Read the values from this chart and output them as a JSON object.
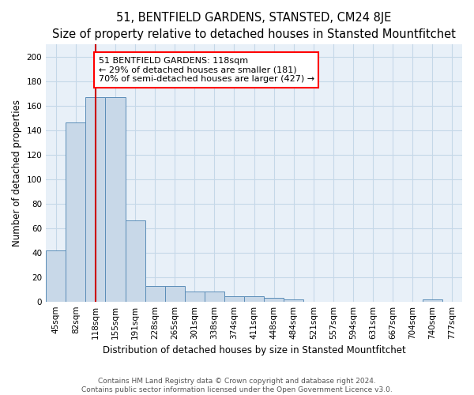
{
  "title": "51, BENTFIELD GARDENS, STANSTED, CM24 8JE",
  "subtitle": "Size of property relative to detached houses in Stansted Mountfitchet",
  "xlabel": "Distribution of detached houses by size in Stansted Mountfitchet",
  "ylabel": "Number of detached properties",
  "footnote1": "Contains HM Land Registry data © Crown copyright and database right 2024.",
  "footnote2": "Contains public sector information licensed under the Open Government Licence v3.0.",
  "bin_labels": [
    "45sqm",
    "82sqm",
    "118sqm",
    "155sqm",
    "191sqm",
    "228sqm",
    "265sqm",
    "301sqm",
    "338sqm",
    "374sqm",
    "411sqm",
    "448sqm",
    "484sqm",
    "521sqm",
    "557sqm",
    "594sqm",
    "631sqm",
    "667sqm",
    "704sqm",
    "740sqm",
    "777sqm"
  ],
  "bar_heights": [
    42,
    146,
    167,
    167,
    66,
    13,
    13,
    8,
    8,
    4,
    4,
    3,
    2,
    0,
    0,
    0,
    0,
    0,
    0,
    2,
    0
  ],
  "bar_color": "#c8d8e8",
  "bar_edge_color": "#5b8db8",
  "red_line_x": 2,
  "annotation_line1": "51 BENTFIELD GARDENS: 118sqm",
  "annotation_line2": "← 29% of detached houses are smaller (181)",
  "annotation_line3": "70% of semi-detached houses are larger (427) →",
  "annotation_box_color": "white",
  "annotation_box_edge_color": "red",
  "red_line_color": "#cc0000",
  "ylim": [
    0,
    210
  ],
  "yticks": [
    0,
    20,
    40,
    60,
    80,
    100,
    120,
    140,
    160,
    180,
    200
  ],
  "grid_color": "#c5d8e8",
  "bg_color": "#e8f0f8",
  "title_fontsize": 10.5,
  "subtitle_fontsize": 9.5,
  "ann_fontsize": 8.0,
  "ylabel_fontsize": 8.5,
  "xlabel_fontsize": 8.5,
  "tick_fontsize": 7.5,
  "footer_fontsize": 6.5
}
